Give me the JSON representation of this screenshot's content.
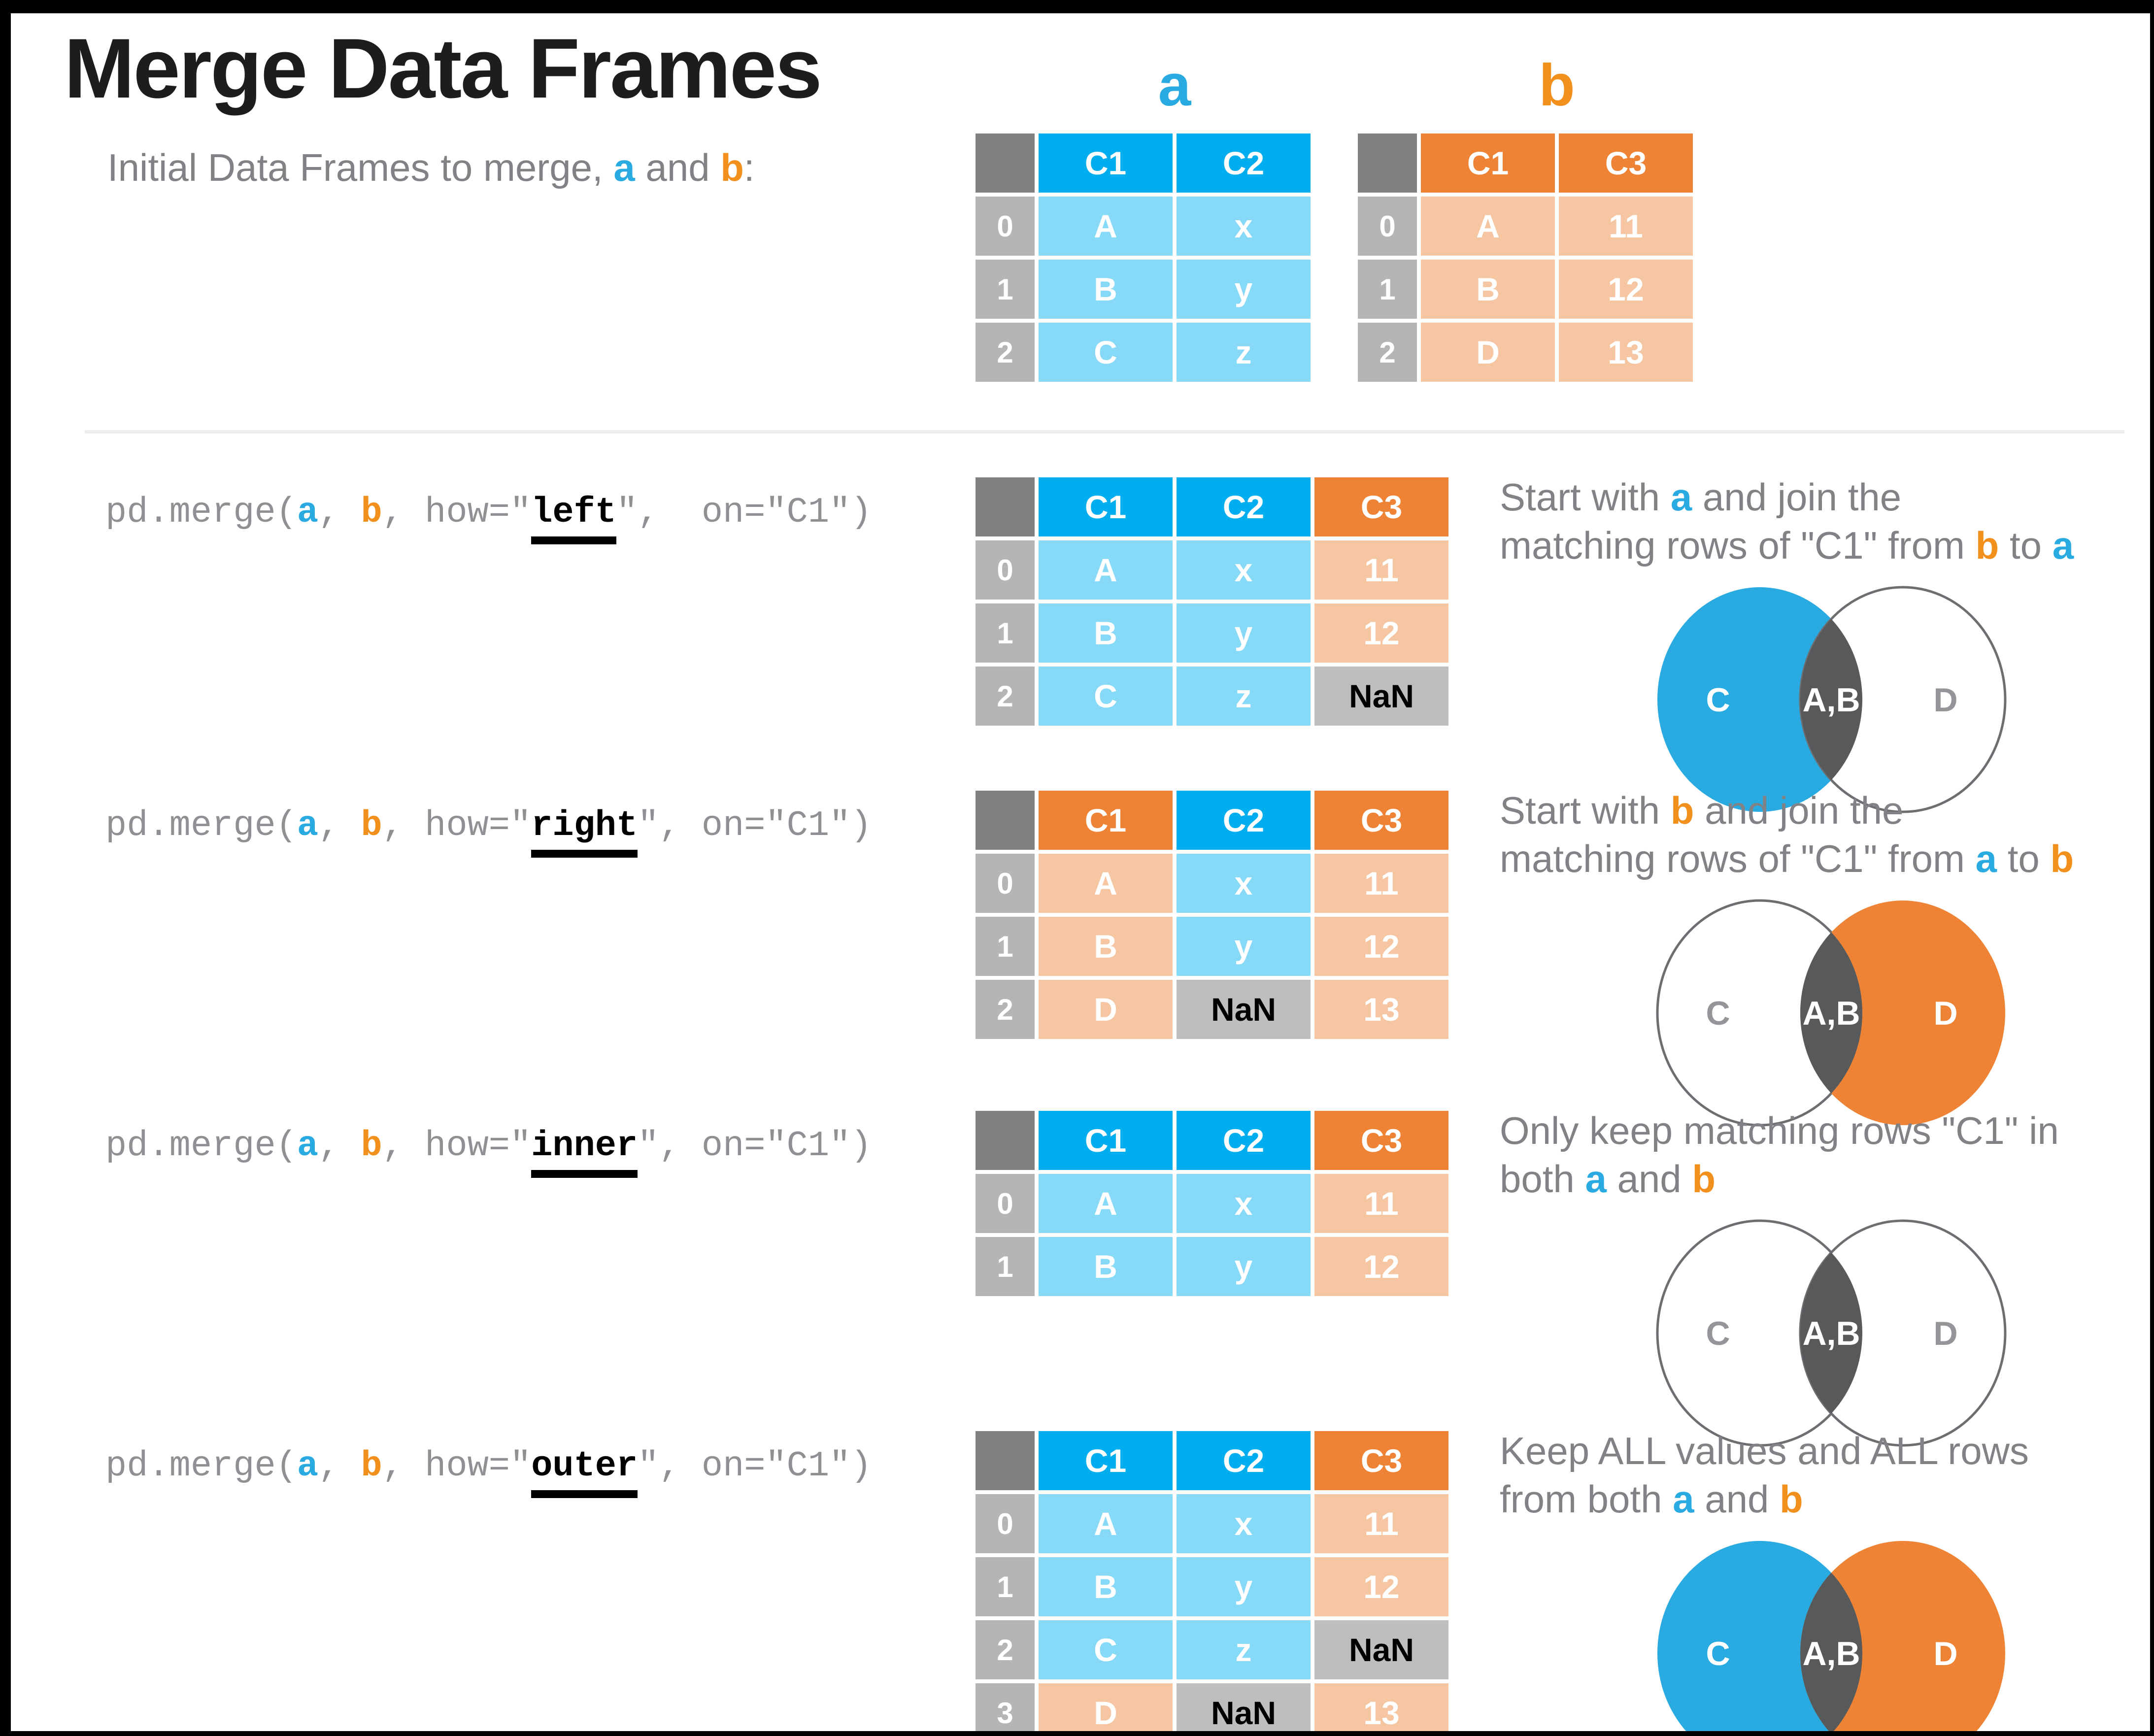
{
  "page": {
    "title": "Merge Data Frames"
  },
  "intro_segments": [
    {
      "t": "Initial Data Frames to merge, ",
      "s": "gray"
    },
    {
      "t": "a",
      "s": "blue"
    },
    {
      "t": " and ",
      "s": "gray"
    },
    {
      "t": "b",
      "s": "orange"
    },
    {
      "t": ":",
      "s": "gray"
    }
  ],
  "colors": {
    "blue_header": "#00AEEF",
    "blue_light": "#87D9F8",
    "orange_header": "#EE8335",
    "orange_light": "#F6C5A1",
    "index_gray": "#B5B5B5",
    "corner_gray": "#808080",
    "nan_gray": "#BEBEBE",
    "venn_dark": "#58595B",
    "venn_outline": "#6D6E71",
    "venn_label_gray": "#939598",
    "text_gray": "#808285",
    "code_gray": "#8E9093",
    "accent_blue": "#29ABE2",
    "accent_orange": "#F2901E"
  },
  "initial_tables": [
    {
      "label": "a",
      "accent": "blue",
      "headers": [
        {
          "t": "C1",
          "c": "blue"
        },
        {
          "t": "C2",
          "c": "blue"
        }
      ],
      "rows": [
        {
          "idx": "0",
          "cells": [
            {
              "t": "A",
              "c": "lb"
            },
            {
              "t": "x",
              "c": "lb"
            }
          ]
        },
        {
          "idx": "1",
          "cells": [
            {
              "t": "B",
              "c": "lb"
            },
            {
              "t": "y",
              "c": "lb"
            }
          ]
        },
        {
          "idx": "2",
          "cells": [
            {
              "t": "C",
              "c": "lb"
            },
            {
              "t": "z",
              "c": "lb"
            }
          ]
        }
      ]
    },
    {
      "label": "b",
      "accent": "orange",
      "headers": [
        {
          "t": "C1",
          "c": "orange"
        },
        {
          "t": "C3",
          "c": "orange"
        }
      ],
      "rows": [
        {
          "idx": "0",
          "cells": [
            {
              "t": "A",
              "c": "lo"
            },
            {
              "t": "11",
              "c": "lo"
            }
          ]
        },
        {
          "idx": "1",
          "cells": [
            {
              "t": "B",
              "c": "lo"
            },
            {
              "t": "12",
              "c": "lo"
            }
          ]
        },
        {
          "idx": "2",
          "cells": [
            {
              "t": "D",
              "c": "lo"
            },
            {
              "t": "13",
              "c": "lo"
            }
          ]
        }
      ]
    }
  ],
  "sections": [
    {
      "id": "left",
      "code": [
        {
          "t": "pd.merge(",
          "s": "gray"
        },
        {
          "t": "a",
          "s": "blue"
        },
        {
          "t": ", ",
          "s": "gray"
        },
        {
          "t": "b",
          "s": "orange"
        },
        {
          "t": ", how=\"",
          "s": "gray"
        },
        {
          "t": "left",
          "s": "how"
        },
        {
          "t": "\",  on=\"C1\")",
          "s": "gray"
        }
      ],
      "table": {
        "headers": [
          {
            "t": "C1",
            "c": "blue"
          },
          {
            "t": "C2",
            "c": "blue"
          },
          {
            "t": "C3",
            "c": "orange"
          }
        ],
        "rows": [
          {
            "idx": "0",
            "cells": [
              {
                "t": "A",
                "c": "lb"
              },
              {
                "t": "x",
                "c": "lb"
              },
              {
                "t": "11",
                "c": "lo"
              }
            ]
          },
          {
            "idx": "1",
            "cells": [
              {
                "t": "B",
                "c": "lb"
              },
              {
                "t": "y",
                "c": "lb"
              },
              {
                "t": "12",
                "c": "lo"
              }
            ]
          },
          {
            "idx": "2",
            "cells": [
              {
                "t": "C",
                "c": "lb"
              },
              {
                "t": "z",
                "c": "lb"
              },
              {
                "t": "NaN",
                "c": "nan"
              }
            ]
          }
        ]
      },
      "desc": [
        {
          "t": "Start with ",
          "s": "gray"
        },
        {
          "t": "a",
          "s": "blue"
        },
        {
          "t": " and join the",
          "s": "gray"
        },
        {
          "br": true
        },
        {
          "t": "matching rows of \"C1\" from ",
          "s": "gray"
        },
        {
          "t": "b",
          "s": "orange"
        },
        {
          "t": " to ",
          "s": "gray"
        },
        {
          "t": "a",
          "s": "blue"
        }
      ],
      "venn": {
        "left": "blue",
        "right": "white",
        "labels": [
          "C",
          "A,B",
          "D"
        ]
      }
    },
    {
      "id": "right",
      "code": [
        {
          "t": "pd.merge(",
          "s": "gray"
        },
        {
          "t": "a",
          "s": "blue"
        },
        {
          "t": ", ",
          "s": "gray"
        },
        {
          "t": "b",
          "s": "orange"
        },
        {
          "t": ", how=\"",
          "s": "gray"
        },
        {
          "t": "right",
          "s": "how"
        },
        {
          "t": "\", on=\"C1\")",
          "s": "gray"
        }
      ],
      "table": {
        "headers": [
          {
            "t": "C1",
            "c": "orange"
          },
          {
            "t": "C2",
            "c": "blue"
          },
          {
            "t": "C3",
            "c": "orange"
          }
        ],
        "rows": [
          {
            "idx": "0",
            "cells": [
              {
                "t": "A",
                "c": "lo"
              },
              {
                "t": "x",
                "c": "lb"
              },
              {
                "t": "11",
                "c": "lo"
              }
            ]
          },
          {
            "idx": "1",
            "cells": [
              {
                "t": "B",
                "c": "lo"
              },
              {
                "t": "y",
                "c": "lb"
              },
              {
                "t": "12",
                "c": "lo"
              }
            ]
          },
          {
            "idx": "2",
            "cells": [
              {
                "t": "D",
                "c": "lo"
              },
              {
                "t": "NaN",
                "c": "nan"
              },
              {
                "t": "13",
                "c": "lo"
              }
            ]
          }
        ]
      },
      "desc": [
        {
          "t": "Start with ",
          "s": "gray"
        },
        {
          "t": "b",
          "s": "orange"
        },
        {
          "t": " and join the",
          "s": "gray"
        },
        {
          "br": true
        },
        {
          "t": "matching rows of \"C1\" from ",
          "s": "gray"
        },
        {
          "t": "a",
          "s": "blue"
        },
        {
          "t": " to ",
          "s": "gray"
        },
        {
          "t": "b",
          "s": "orange"
        }
      ],
      "venn": {
        "left": "white",
        "right": "orange",
        "labels": [
          "C",
          "A,B",
          "D"
        ]
      }
    },
    {
      "id": "inner",
      "code": [
        {
          "t": "pd.merge(",
          "s": "gray"
        },
        {
          "t": "a",
          "s": "blue"
        },
        {
          "t": ", ",
          "s": "gray"
        },
        {
          "t": "b",
          "s": "orange"
        },
        {
          "t": ", how=\"",
          "s": "gray"
        },
        {
          "t": "inner",
          "s": "how"
        },
        {
          "t": "\", on=\"C1\")",
          "s": "gray"
        }
      ],
      "table": {
        "headers": [
          {
            "t": "C1",
            "c": "blue"
          },
          {
            "t": "C2",
            "c": "blue"
          },
          {
            "t": "C3",
            "c": "orange"
          }
        ],
        "rows": [
          {
            "idx": "0",
            "cells": [
              {
                "t": "A",
                "c": "lb"
              },
              {
                "t": "x",
                "c": "lb"
              },
              {
                "t": "11",
                "c": "lo"
              }
            ]
          },
          {
            "idx": "1",
            "cells": [
              {
                "t": "B",
                "c": "lb"
              },
              {
                "t": "y",
                "c": "lb"
              },
              {
                "t": "12",
                "c": "lo"
              }
            ]
          }
        ]
      },
      "desc": [
        {
          "t": "Only keep matching rows \"C1\" in",
          "s": "gray"
        },
        {
          "br": true
        },
        {
          "t": "both ",
          "s": "gray"
        },
        {
          "t": "a",
          "s": "blue"
        },
        {
          "t": " and ",
          "s": "gray"
        },
        {
          "t": "b",
          "s": "orange"
        }
      ],
      "venn": {
        "left": "white",
        "right": "white",
        "labels": [
          "C",
          "A,B",
          "D"
        ]
      }
    },
    {
      "id": "outer",
      "code": [
        {
          "t": "pd.merge(",
          "s": "gray"
        },
        {
          "t": "a",
          "s": "blue"
        },
        {
          "t": ", ",
          "s": "gray"
        },
        {
          "t": "b",
          "s": "orange"
        },
        {
          "t": ", how=\"",
          "s": "gray"
        },
        {
          "t": "outer",
          "s": "how"
        },
        {
          "t": "\", on=\"C1\")",
          "s": "gray"
        }
      ],
      "table": {
        "headers": [
          {
            "t": "C1",
            "c": "blue"
          },
          {
            "t": "C2",
            "c": "blue"
          },
          {
            "t": "C3",
            "c": "orange"
          }
        ],
        "rows": [
          {
            "idx": "0",
            "cells": [
              {
                "t": "A",
                "c": "lb"
              },
              {
                "t": "x",
                "c": "lb"
              },
              {
                "t": "11",
                "c": "lo"
              }
            ]
          },
          {
            "idx": "1",
            "cells": [
              {
                "t": "B",
                "c": "lb"
              },
              {
                "t": "y",
                "c": "lb"
              },
              {
                "t": "12",
                "c": "lo"
              }
            ]
          },
          {
            "idx": "2",
            "cells": [
              {
                "t": "C",
                "c": "lb"
              },
              {
                "t": "z",
                "c": "lb"
              },
              {
                "t": "NaN",
                "c": "nan"
              }
            ]
          },
          {
            "idx": "3",
            "cells": [
              {
                "t": "D",
                "c": "lo"
              },
              {
                "t": "NaN",
                "c": "nan"
              },
              {
                "t": "13",
                "c": "lo"
              }
            ]
          }
        ]
      },
      "desc": [
        {
          "t": "Keep ALL values and ALL rows",
          "s": "gray"
        },
        {
          "br": true
        },
        {
          "t": "from both ",
          "s": "gray"
        },
        {
          "t": "a",
          "s": "blue"
        },
        {
          "t": " and ",
          "s": "gray"
        },
        {
          "t": "b",
          "s": "orange"
        }
      ],
      "venn": {
        "left": "blue",
        "right": "orange",
        "labels": [
          "C",
          "A,B",
          "D"
        ]
      }
    }
  ]
}
